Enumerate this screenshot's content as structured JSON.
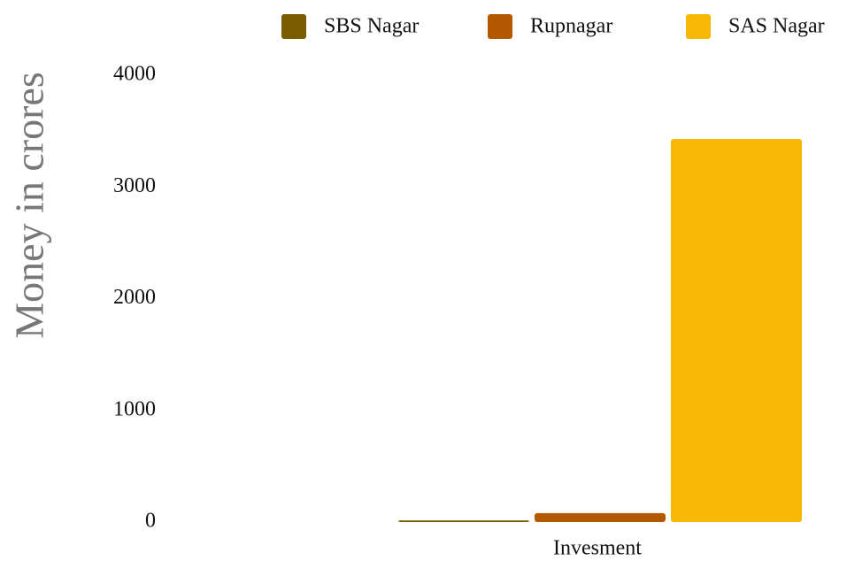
{
  "chart_data": {
    "type": "bar",
    "y_label": "Money in crores",
    "categories": [
      "Invesment"
    ],
    "series": [
      {
        "name": "SBS Nagar",
        "color": "#7a5c00",
        "values": [
          15
        ]
      },
      {
        "name": "Rupnagar",
        "color": "#b35a00",
        "values": [
          80
        ]
      },
      {
        "name": "SAS Nagar",
        "color": "#f9b806",
        "values": [
          3430
        ]
      }
    ],
    "ylim": [
      0,
      4000
    ],
    "yticks": [
      0,
      1000,
      2000,
      3000,
      4000
    ],
    "grid": false,
    "legend": "top"
  }
}
